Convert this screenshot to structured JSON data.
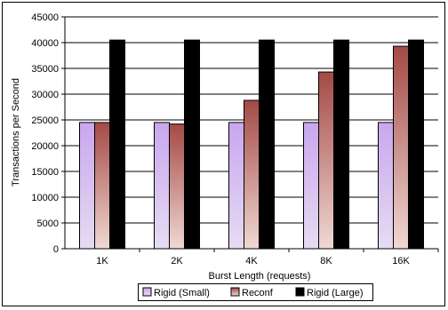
{
  "chart_data": {
    "type": "bar",
    "categories": [
      "1K",
      "2K",
      "4K",
      "8K",
      "16K"
    ],
    "series": [
      {
        "name": "Rigid (Small)",
        "values": [
          24500,
          24500,
          24500,
          24500,
          24500
        ],
        "color": "#c9a6ee",
        "color_bottom": "#e6dcf2"
      },
      {
        "name": "Reconf",
        "values": [
          24500,
          24200,
          28800,
          34300,
          39300
        ],
        "color": "#a44a45",
        "color_bottom": "#f0d8d4"
      },
      {
        "name": "Rigid (Large)",
        "values": [
          40500,
          40500,
          40500,
          40500,
          40500
        ],
        "color": "#000000",
        "color_bottom": "#000000"
      }
    ],
    "xlabel": "Burst Length (requests)",
    "ylabel": "Transactions per Second",
    "ylim": [
      0,
      45000
    ],
    "yticks": [
      0,
      5000,
      10000,
      15000,
      20000,
      25000,
      30000,
      35000,
      40000,
      45000
    ],
    "grid": true,
    "legend_position": "bottom"
  }
}
